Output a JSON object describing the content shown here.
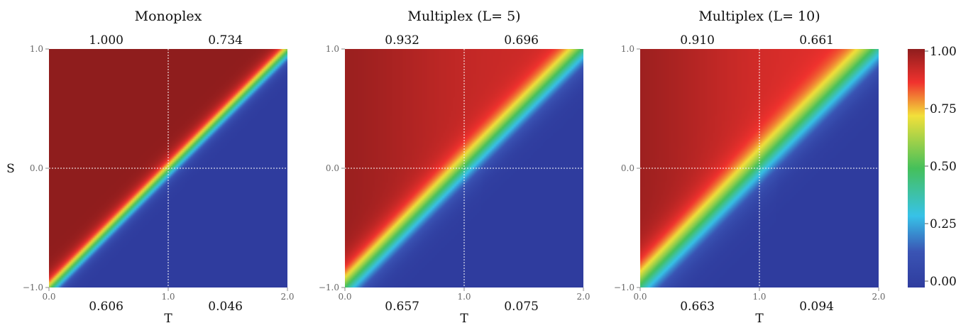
{
  "chart_data": [
    {
      "type": "heatmap",
      "title": "Monoplex",
      "xlabel": "T",
      "ylabel": "S",
      "xlim": [
        0.0,
        2.0
      ],
      "ylim": [
        -1.0,
        1.0
      ],
      "xticks": [
        "0.0",
        "1.0",
        "2.0"
      ],
      "yticks": [
        "−1.0",
        "0.0",
        "1.0"
      ],
      "quadrant_values": {
        "top_left": "1.000",
        "top_right": "0.734",
        "bottom_left": "0.606",
        "bottom_right": "0.046"
      },
      "mid_lines": {
        "x": 1.0,
        "y": 0.0
      },
      "transition": {
        "center_offset": -0.02,
        "width": 0.05,
        "sharpness": 1.0
      }
    },
    {
      "type": "heatmap",
      "title": "Multiplex (L= 5)",
      "xlabel": "T",
      "ylabel": "",
      "xlim": [
        0.0,
        2.0
      ],
      "ylim": [
        -1.0,
        1.0
      ],
      "xticks": [
        "0.0",
        "1.0",
        "2.0"
      ],
      "yticks": [
        "−1.0",
        "0.0",
        "1.0"
      ],
      "quadrant_values": {
        "top_left": "0.932",
        "top_right": "0.696",
        "bottom_left": "0.657",
        "bottom_right": "0.075"
      },
      "mid_lines": {
        "x": 1.0,
        "y": 0.0
      },
      "transition": {
        "center_offset": 0.0,
        "width": 0.09,
        "sharpness": 0.5
      }
    },
    {
      "type": "heatmap",
      "title": "Multiplex (L= 10)",
      "xlabel": "T",
      "ylabel": "",
      "xlim": [
        0.0,
        2.0
      ],
      "ylim": [
        -1.0,
        1.0
      ],
      "xticks": [
        "0.0",
        "1.0",
        "2.0"
      ],
      "yticks": [
        "−1.0",
        "0.0",
        "1.0"
      ],
      "quadrant_values": {
        "top_left": "0.910",
        "top_right": "0.661",
        "bottom_left": "0.663",
        "bottom_right": "0.094"
      },
      "mid_lines": {
        "x": 1.0,
        "y": 0.0
      },
      "transition": {
        "center_offset": 0.02,
        "width": 0.11,
        "sharpness": 0.35
      }
    }
  ],
  "colorbar": {
    "ticks": [
      "0.00",
      "0.25",
      "0.50",
      "0.75",
      "1.00"
    ],
    "range": [
      0.0,
      1.0
    ],
    "colormap": [
      "#2f3c9e",
      "#3a54b4",
      "#37c2e8",
      "#45c05a",
      "#f2e03a",
      "#f0322e",
      "#8f1d1d"
    ]
  }
}
